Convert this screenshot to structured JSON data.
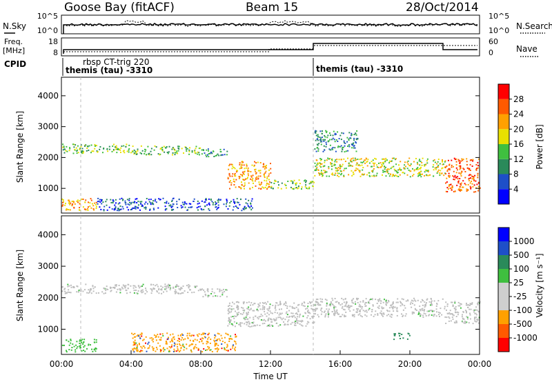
{
  "header": {
    "station": "Goose Bay (fitACF)",
    "beam": "Beam 15",
    "date": "28/Oct/2014"
  },
  "noise_panel": {
    "left_label": "N.Sky",
    "right_label": "N.Search",
    "left_ticks": [
      "10^5",
      "10^0"
    ],
    "right_ticks": [
      "10^5",
      "10^0"
    ]
  },
  "freq_panel": {
    "left_label": "Freq.",
    "left_unit": "[MHz]",
    "right_label": "Nave",
    "left_ticks": [
      "18",
      "8"
    ],
    "right_ticks": [
      "60",
      "0"
    ]
  },
  "cpid_panel": {
    "label": "CPID",
    "entries": [
      "themis (tau) -3310",
      "rbsp CT-trig 220",
      "themis (tau) -3310"
    ]
  },
  "colors": {
    "power_scale": [
      "#0000ff",
      "#1e4fc8",
      "#2a8a5a",
      "#3fbf3f",
      "#e8e000",
      "#ffa000",
      "#ff5a00",
      "#ff0000"
    ],
    "velocity_scale": [
      "#ff0000",
      "#ff5a00",
      "#ffa000",
      "#cfcfcf",
      "#cfcfcf",
      "#3fbf3f",
      "#2a8a5a",
      "#1e4fc8",
      "#0000ff"
    ],
    "ground_scatter": "#bdbdbd"
  },
  "chart_data": [
    {
      "type": "heatmap",
      "name": "power",
      "ylabel": "Slant Range [km]",
      "xlabel": "",
      "y_ticks": [
        1000,
        2000,
        3000,
        4000
      ],
      "ylim": [
        200,
        4600
      ],
      "colorbar": {
        "label": "Power [dB]",
        "ticks": [
          "4",
          "8",
          "12",
          "16",
          "20",
          "24",
          "28"
        ]
      },
      "regions": [
        {
          "t0": 0.0,
          "t1": 4.0,
          "r0": 2150,
          "r1": 2450,
          "level": 3
        },
        {
          "t0": 4.0,
          "t1": 8.0,
          "r0": 2100,
          "r1": 2400,
          "level": 3
        },
        {
          "t0": 8.0,
          "t1": 9.5,
          "r0": 2050,
          "r1": 2300,
          "level": 2
        },
        {
          "t0": 9.5,
          "t1": 12.0,
          "r0": 1000,
          "r1": 1900,
          "level": 5
        },
        {
          "t0": 12.0,
          "t1": 14.5,
          "r0": 1000,
          "r1": 1300,
          "level": 3
        },
        {
          "t0": 14.5,
          "t1": 22.0,
          "r0": 1400,
          "r1": 2000,
          "level": 4
        },
        {
          "t0": 22.0,
          "t1": 24.0,
          "r0": 900,
          "r1": 2000,
          "level": 6
        },
        {
          "t0": 0.0,
          "t1": 2.0,
          "r0": 300,
          "r1": 700,
          "level": 5
        },
        {
          "t0": 2.0,
          "t1": 11.0,
          "r0": 300,
          "r1": 700,
          "level": 1
        },
        {
          "t0": 14.5,
          "t1": 17.0,
          "r0": 2200,
          "r1": 2900,
          "level": 2
        }
      ]
    },
    {
      "type": "heatmap",
      "name": "velocity",
      "ylabel": "Slant Range [km]",
      "xlabel": "Time UT",
      "y_ticks": [
        1000,
        2000,
        3000,
        4000
      ],
      "ylim": [
        200,
        4600
      ],
      "colorbar": {
        "label": "Velocity [m s⁻¹]",
        "ticks": [
          "-1000",
          "-500",
          "-100",
          "-25",
          "25",
          "100",
          "500",
          "1000"
        ]
      },
      "x_ticks": [
        "00:00",
        "04:00",
        "08:00",
        "12:00",
        "16:00",
        "20:00",
        "00:00"
      ],
      "xlim_hours": [
        0,
        24
      ],
      "regions": [
        {
          "t0": 0.0,
          "t1": 8.0,
          "r0": 2150,
          "r1": 2450,
          "kind": "ground"
        },
        {
          "t0": 8.0,
          "t1": 9.5,
          "r0": 2050,
          "r1": 2300,
          "kind": "ground"
        },
        {
          "t0": 9.5,
          "t1": 14.5,
          "r0": 1100,
          "r1": 1900,
          "kind": "ground"
        },
        {
          "t0": 14.5,
          "t1": 22.0,
          "r0": 1400,
          "r1": 2000,
          "kind": "ground"
        },
        {
          "t0": 22.0,
          "t1": 24.0,
          "r0": 1200,
          "r1": 1900,
          "kind": "ground"
        },
        {
          "t0": 0.0,
          "t1": 2.0,
          "r0": 300,
          "r1": 700,
          "kind": "green"
        },
        {
          "t0": 4.0,
          "t1": 10.0,
          "r0": 300,
          "r1": 900,
          "kind": "orange"
        },
        {
          "t0": 19.0,
          "t1": 20.0,
          "r0": 700,
          "r1": 900,
          "kind": "darkgreen"
        }
      ]
    }
  ]
}
